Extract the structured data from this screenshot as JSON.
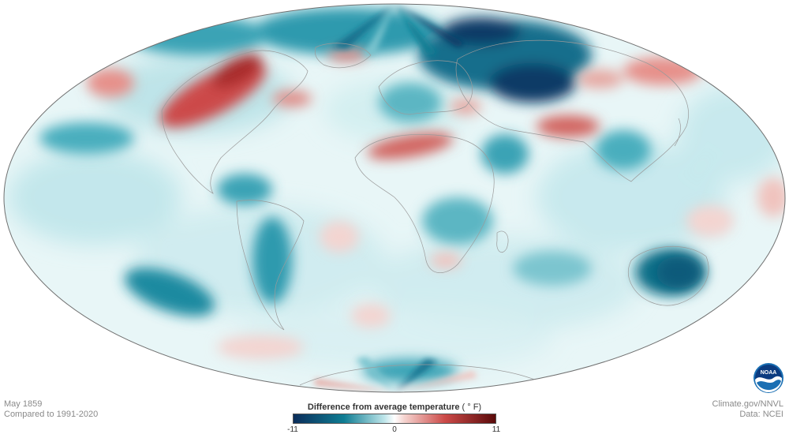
{
  "map": {
    "colors": {
      "cold_extreme": "#0b2d5b",
      "cold_mid": "#0f7d93",
      "cold_light": "#bfe6ea",
      "neutral": "#ffffff",
      "warm_light": "#f5d3cf",
      "warm_mid": "#cc4a48",
      "warm_extreme": "#5a0a0a",
      "outline": "#707070",
      "coastline": "#9a9a9a"
    }
  },
  "caption": {
    "date": "May 1859",
    "baseline": "Compared to 1991-2020"
  },
  "legend": {
    "title": "Difference from average temperature",
    "unit": "( ° F)",
    "min_label": "-11",
    "mid_label": "0",
    "max_label": "11",
    "min_value": -11,
    "max_value": 11
  },
  "credits": {
    "site": "Climate.gov/NNVL",
    "data": "Data: NCEI"
  },
  "logo": {
    "text": "NOAA"
  }
}
